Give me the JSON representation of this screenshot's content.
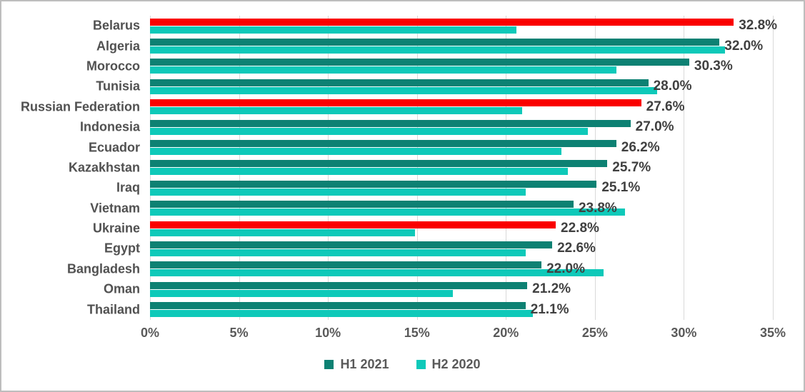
{
  "chart_data": {
    "type": "bar",
    "orientation": "horizontal",
    "categories": [
      "Belarus",
      "Algeria",
      "Morocco",
      "Tunisia",
      "Russian Federation",
      "Indonesia",
      "Ecuador",
      "Kazakhstan",
      "Iraq",
      "Vietnam",
      "Ukraine",
      "Egypt",
      "Bangladesh",
      "Oman",
      "Thailand"
    ],
    "series": [
      {
        "name": "H1 2021",
        "color": "#0d8173",
        "values": [
          32.8,
          32.0,
          30.3,
          28.0,
          27.6,
          27.0,
          26.2,
          25.7,
          25.1,
          23.8,
          22.8,
          22.6,
          22.0,
          21.2,
          21.1
        ],
        "labels": [
          "32.8%",
          "32.0%",
          "30.3%",
          "28.0%",
          "27.6%",
          "27.0%",
          "26.2%",
          "25.7%",
          "25.1%",
          "23.8%",
          "22.8%",
          "22.6%",
          "22.0%",
          "21.2%",
          "21.1%"
        ]
      },
      {
        "name": "H2 2020",
        "color": "#0ec9b9",
        "values": [
          20.6,
          32.3,
          26.2,
          28.5,
          20.9,
          24.6,
          23.1,
          23.5,
          21.1,
          26.7,
          14.9,
          21.1,
          25.5,
          17.0,
          21.5
        ]
      }
    ],
    "highlighted_categories": [
      "Belarus",
      "Russian Federation",
      "Ukraine"
    ],
    "highlight_color": "#fa0000",
    "xlim": [
      0,
      35
    ],
    "x_tick_step": 5,
    "x_ticks": [
      "0%",
      "5%",
      "10%",
      "15%",
      "20%",
      "25%",
      "30%",
      "35%"
    ],
    "grid": true,
    "gridline_color": "#d9d9d9",
    "legend_position": "bottom",
    "category_text_color": "#515151",
    "value_text_color": "#404040",
    "axis_text_color": "#595959"
  }
}
